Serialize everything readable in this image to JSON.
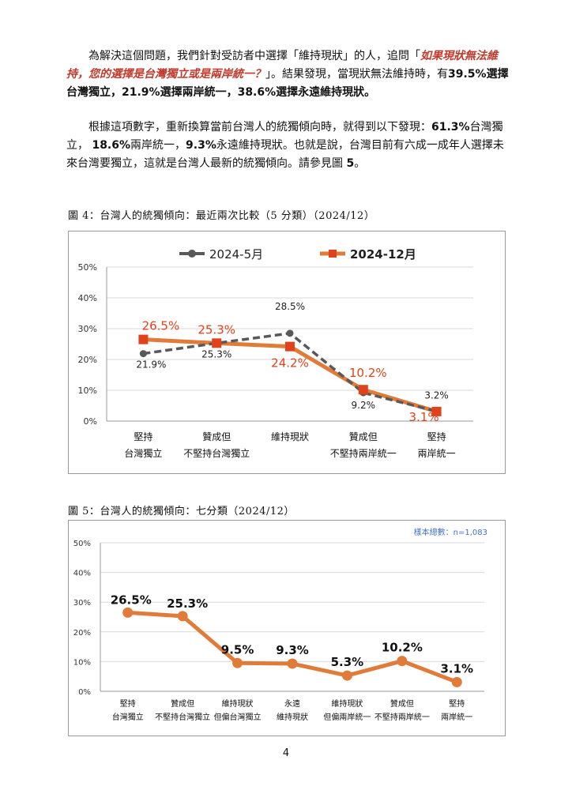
{
  "paragraph1": {
    "p1": "為解決這個問題，我們針對受訪者中選擇「維持現狀」的人，追問「",
    "p2": "如果現狀無法維持，您的選擇是台灣獨立或是兩岸統一？",
    "p3": "」。結果發現，當現狀無法維持時，有",
    "p4": "39.5%",
    "p5": "選擇台灣獨立，",
    "p6": "21.9%",
    "p7": "選擇兩岸統一，",
    "p8": "38.6%",
    "p9": "選擇永遠維持現狀。"
  },
  "paragraph2": {
    "p1": "根據這項數字，重新換算當前台灣人的統獨傾向時，就得到以下發現：",
    "p2": "61.3%",
    "p3": "台灣獨立，  ",
    "p4": "18.6%",
    "p5": "兩岸統一，",
    "p6": "9.3%",
    "p7": "永遠維持現狀。也就是說，台灣目前有六成一成年人選擇未來台灣要獨立，這就是台灣人最新的統獨傾向。請參見圖 ",
    "p8": "5",
    "p9": "。"
  },
  "figure4": {
    "title": "圖 4：台灣人的統獨傾向：最近兩次比較（5 分類）（2024/12）"
  },
  "figure5": {
    "title": "圖 5：台灣人的統獨傾向：七分類（2024/12）"
  },
  "page_number": "4",
  "chart_data": [
    {
      "type": "line",
      "categories": [
        [
          "堅持",
          "台灣獨立"
        ],
        [
          "贊成但",
          "不堅持台灣獨立"
        ],
        [
          "維持現狀"
        ],
        [
          "贊成但",
          "不堅持兩岸統一"
        ],
        [
          "堅持",
          "兩岸統一"
        ]
      ],
      "series": [
        {
          "name": "2024-5月",
          "values": [
            21.9,
            25.3,
            28.5,
            9.2,
            3.2
          ],
          "labels": [
            "21.9%",
            "25.3%",
            "28.5%",
            "9.2%",
            "3.2%"
          ],
          "color": "#595959",
          "dashed": true
        },
        {
          "name": "2024-12月",
          "values": [
            26.5,
            25.3,
            24.2,
            10.2,
            3.1
          ],
          "labels": [
            "26.5%",
            "25.3%",
            "24.2%",
            "10.2%",
            "3.1%"
          ],
          "color": "#e07b39",
          "label_color": "#e0421b"
        }
      ],
      "yticks": [
        "50%",
        "40%",
        "30%",
        "20%",
        "10%",
        "0%"
      ],
      "ylim": [
        0,
        50
      ],
      "legend": "top",
      "grid": true
    },
    {
      "type": "line",
      "categories": [
        [
          "堅持",
          "台灣獨立"
        ],
        [
          "贊成但",
          "不堅持台灣獨立"
        ],
        [
          "維持現狀",
          "但偏台灣獨立"
        ],
        [
          "永遠",
          "維持現狀"
        ],
        [
          "維持現狀",
          "但偏兩岸統一"
        ],
        [
          "贊成但",
          "不堅持兩岸統一"
        ],
        [
          "堅持",
          "兩岸統一"
        ]
      ],
      "series": [
        {
          "values": [
            26.5,
            25.3,
            9.5,
            9.3,
            5.3,
            10.2,
            3.1
          ],
          "labels": [
            "26.5%",
            "25.3%",
            "9.5%",
            "9.3%",
            "5.3%",
            "10.2%",
            "3.1%"
          ],
          "color": "#e07b39"
        }
      ],
      "yticks": [
        "50%",
        "40%",
        "30%",
        "20%",
        "10%",
        "0%"
      ],
      "ylim": [
        0,
        50
      ],
      "note": "樣本總數：n=1,083",
      "note_color": "#4472c4",
      "grid": true
    }
  ]
}
